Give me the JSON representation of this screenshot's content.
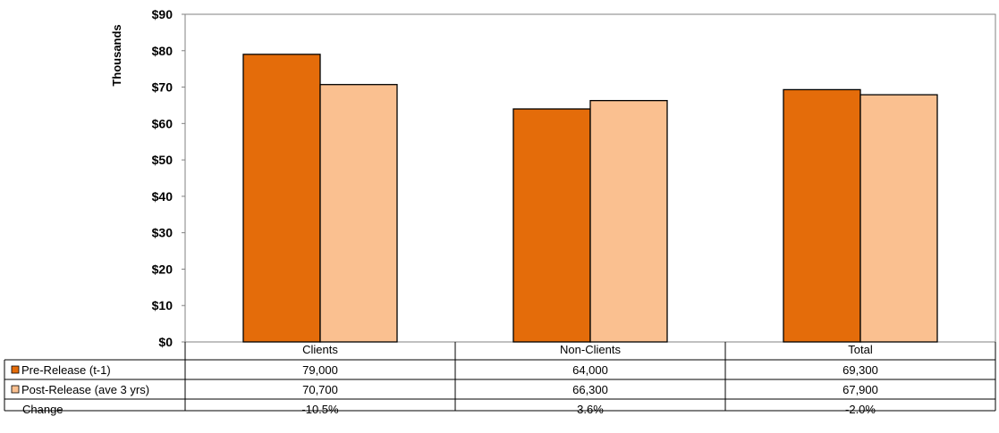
{
  "chart_data": {
    "type": "bar",
    "categories": [
      "Clients",
      "Non-Clients",
      "Total"
    ],
    "series": [
      {
        "name": "Pre-Release (t-1)",
        "color": "#E46C0A",
        "values": [
          79000,
          64000,
          69300
        ],
        "labels": [
          "79,000",
          "64,000",
          "69,300"
        ]
      },
      {
        "name": "Post-Release (ave 3 yrs)",
        "color": "#FAC090",
        "values": [
          70700,
          66300,
          67900
        ],
        "labels": [
          "70,700",
          "66,300",
          "67,900"
        ]
      }
    ],
    "change": {
      "name": "Change",
      "values": [
        "-10.5%",
        "3.6%",
        "-2.0%"
      ]
    },
    "ylabel": "Thousands",
    "ylim": [
      0,
      90
    ],
    "yticks": [
      "$0",
      "$10",
      "$20",
      "$30",
      "$40",
      "$50",
      "$60",
      "$70",
      "$80",
      "$90"
    ],
    "grid": false,
    "legend": "data-table"
  }
}
